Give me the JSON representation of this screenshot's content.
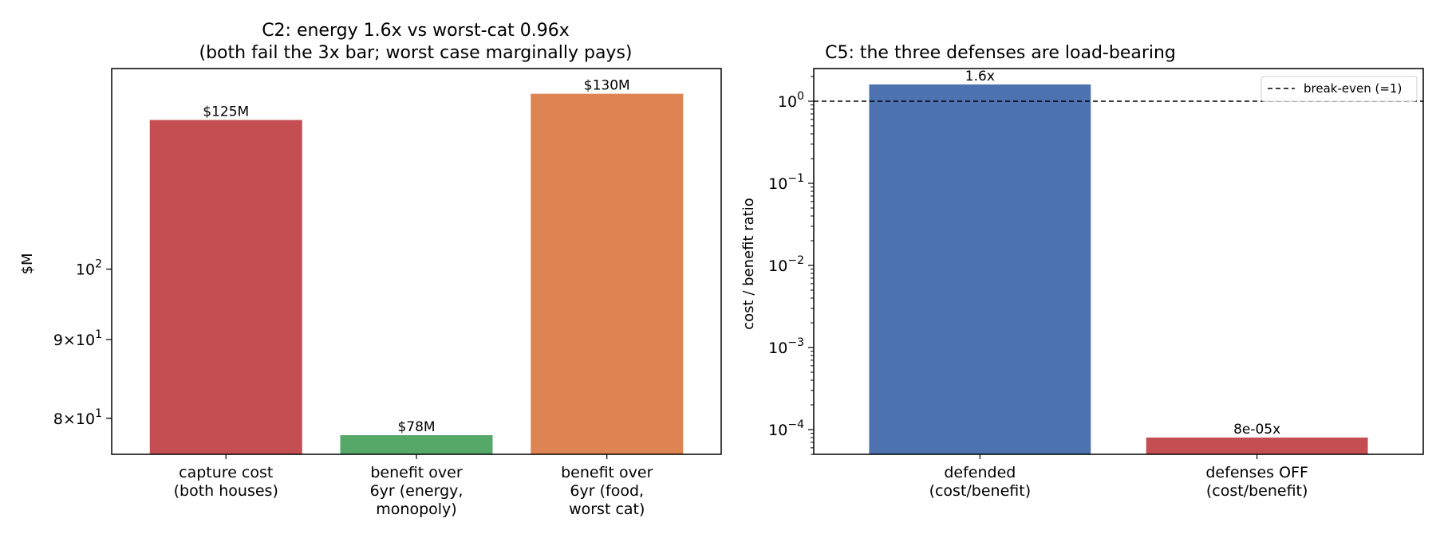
{
  "chart_data": [
    {
      "type": "bar",
      "title": "C2: energy 1.6x vs worst-cat 0.96x",
      "subtitle": "(both fail the 3x bar; worst case marginally pays)",
      "ylabel": "$M",
      "yscale": "log",
      "ylim": [
        75.8,
        135
      ],
      "ytick_labels": [
        {
          "value": 100,
          "base": "10",
          "exp": "2",
          "mant": ""
        },
        {
          "value": 90,
          "base": "10",
          "exp": "1",
          "mant": "9×"
        },
        {
          "value": 80,
          "base": "10",
          "exp": "1",
          "mant": "8×"
        }
      ],
      "categories": [
        [
          "capture cost",
          "(both houses)"
        ],
        [
          "benefit over",
          "6yr (energy,",
          "monopoly)"
        ],
        [
          "benefit over",
          "6yr (food,",
          "worst cat)"
        ]
      ],
      "values": [
        125,
        78,
        130
      ],
      "value_labels": [
        "$125M",
        "$78M",
        "$130M"
      ],
      "colors": [
        "#c44e52",
        "#55a868",
        "#dd8452"
      ]
    },
    {
      "type": "bar",
      "title": "C5: the three defenses are load-bearing",
      "ylabel": "cost / benefit ratio",
      "yscale": "log",
      "ylim": [
        5e-05,
        2.5
      ],
      "ytick_labels": [
        {
          "value": 1,
          "base": "10",
          "exp": "0"
        },
        {
          "value": 0.1,
          "base": "10",
          "exp": "−1"
        },
        {
          "value": 0.01,
          "base": "10",
          "exp": "−2"
        },
        {
          "value": 0.001,
          "base": "10",
          "exp": "−3"
        },
        {
          "value": 0.0001,
          "base": "10",
          "exp": "−4"
        }
      ],
      "categories": [
        [
          "defended",
          "(cost/benefit)"
        ],
        [
          "defenses OFF",
          "(cost/benefit)"
        ]
      ],
      "values": [
        1.6,
        8e-05
      ],
      "value_labels": [
        "1.6x",
        "8e-05x"
      ],
      "colors": [
        "#4c72b0",
        "#c44e52"
      ],
      "reference_line": {
        "value": 1,
        "label": "break-even (=1)"
      },
      "legend": {
        "position": "top-right",
        "entries": [
          "break-even (=1)"
        ]
      }
    }
  ]
}
